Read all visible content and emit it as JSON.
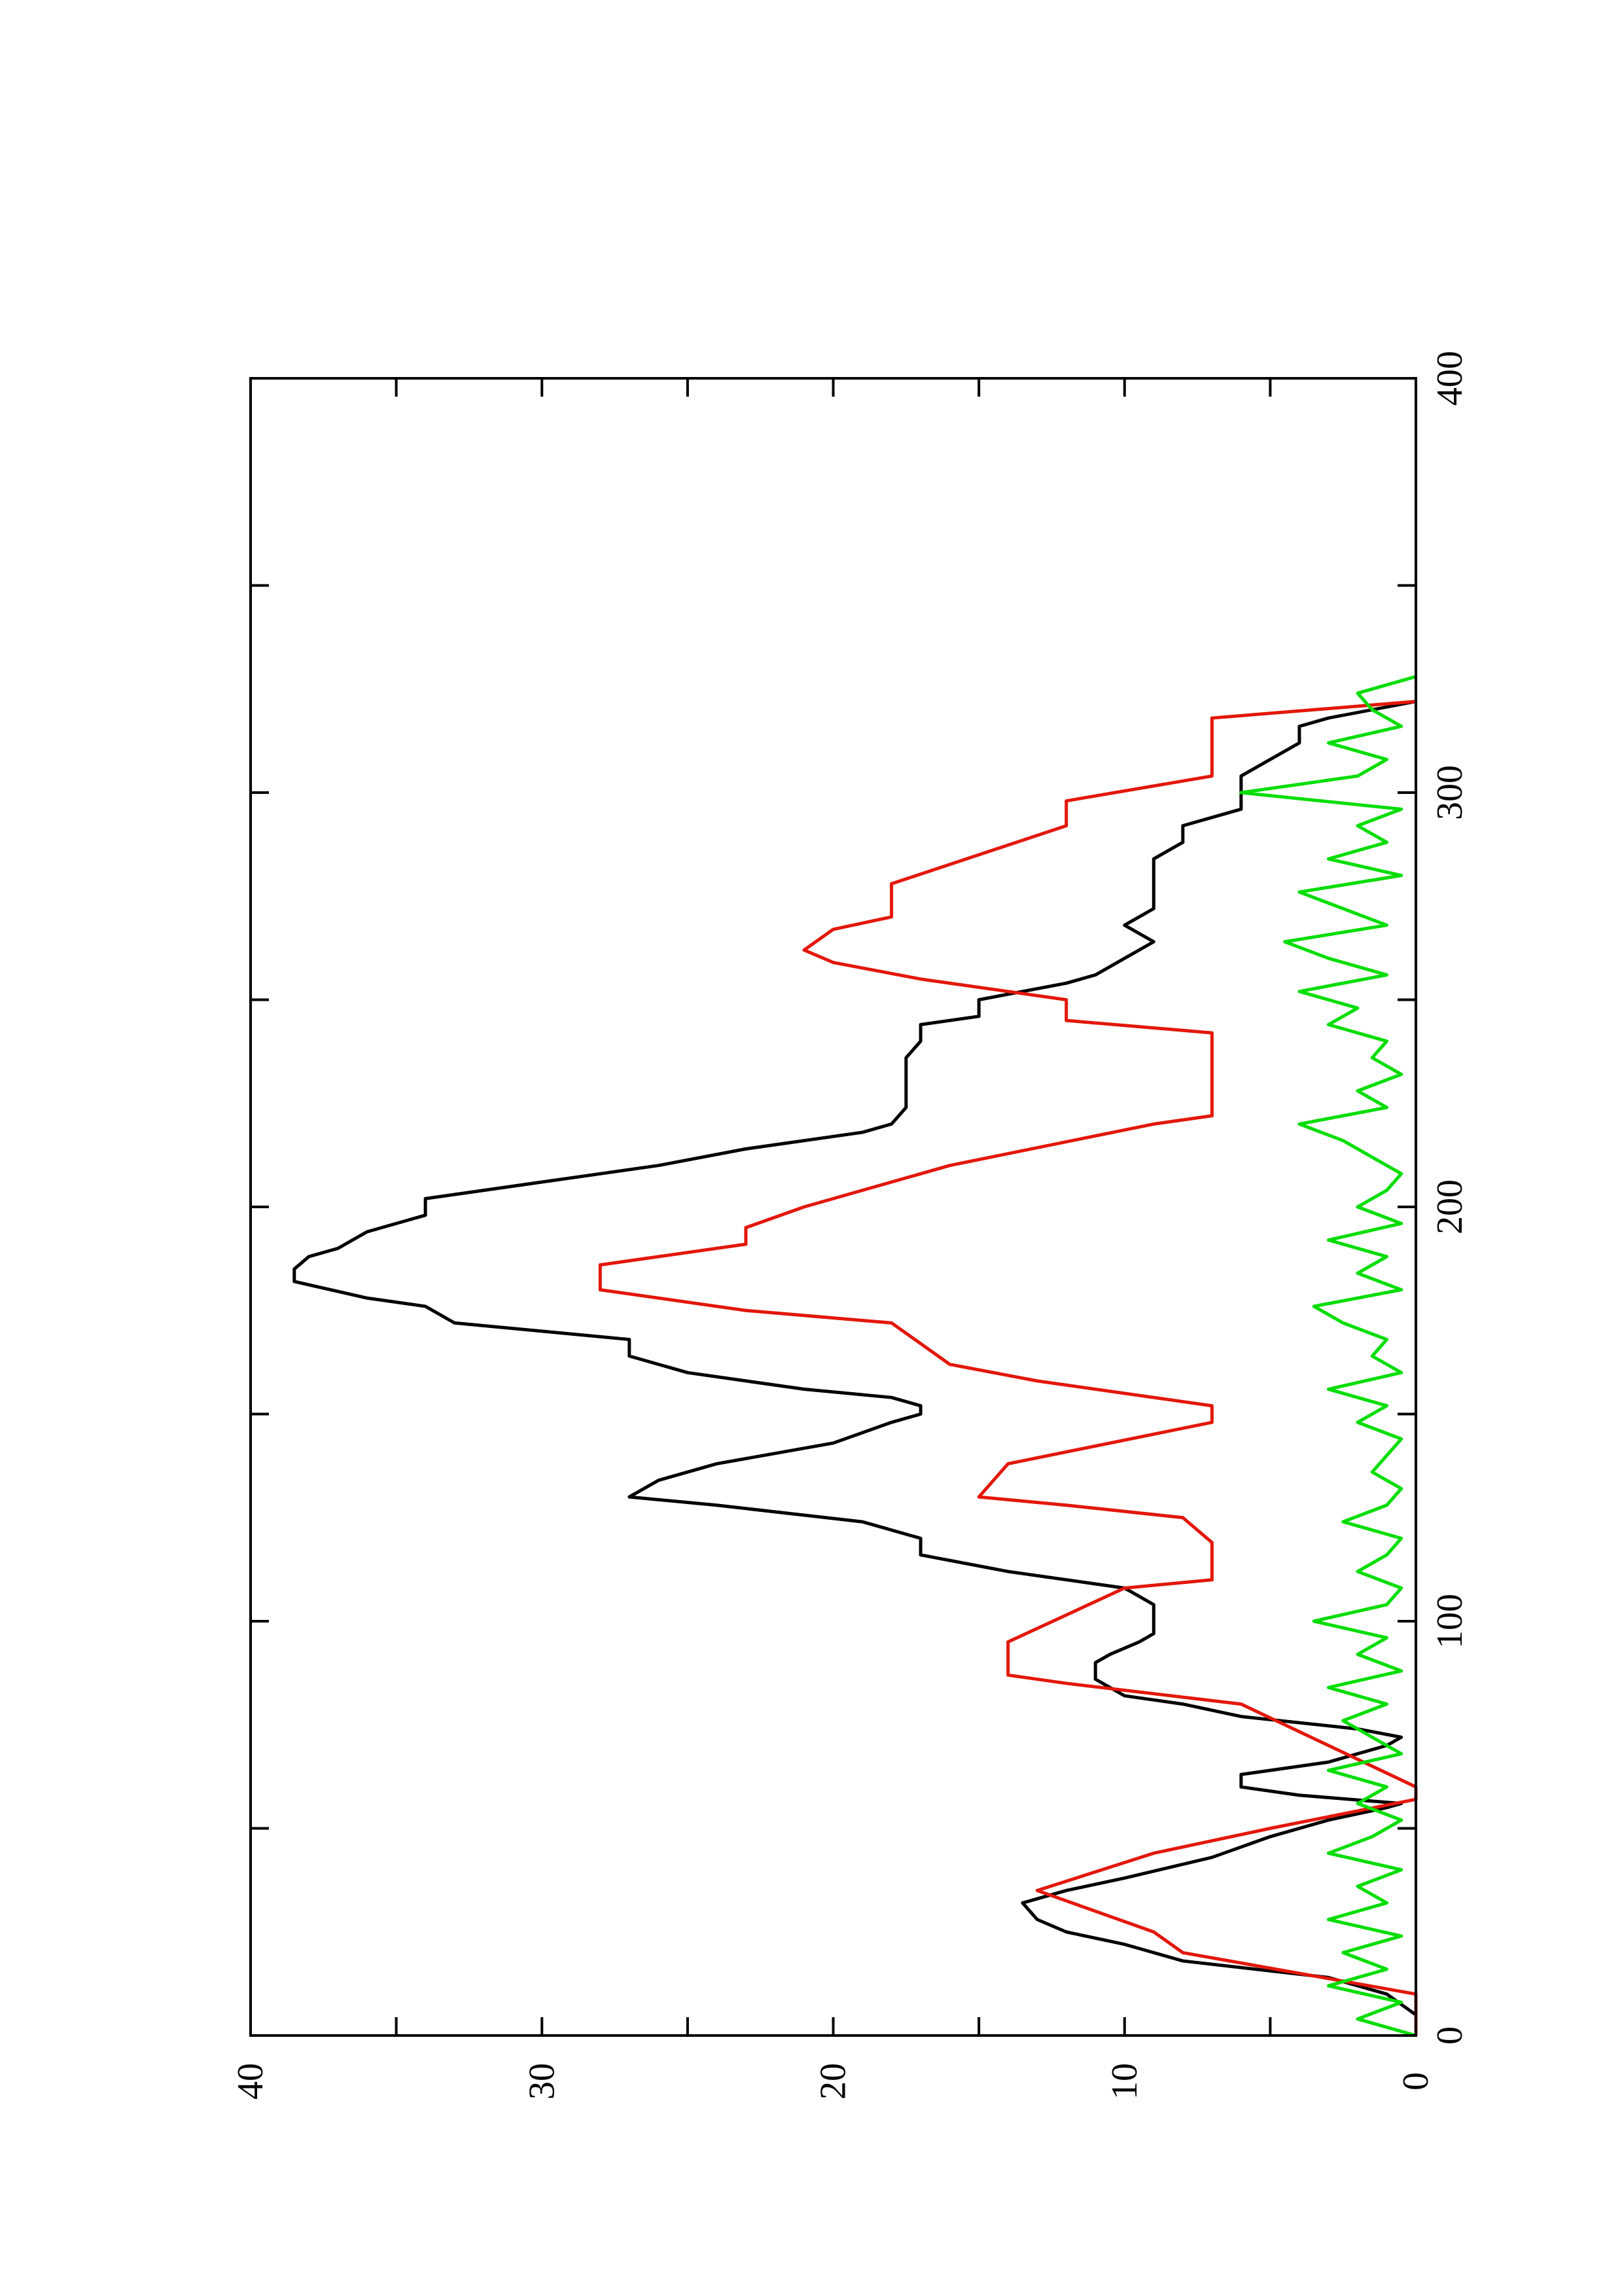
{
  "chart_data": {
    "type": "line",
    "title": "",
    "xlabel": "",
    "ylabel": "",
    "orientation": "rotated-90-ccw",
    "xlim": [
      0,
      400
    ],
    "ylim": [
      0,
      40
    ],
    "x_ticks": [
      0,
      100,
      200,
      300,
      400
    ],
    "y_ticks": [
      0,
      10,
      20,
      30,
      40
    ],
    "grid": false,
    "legend": "none",
    "series": [
      {
        "color": "#000000",
        "x": [
          0,
          5,
          10,
          14,
          18,
          20,
          22,
          25,
          28,
          32,
          35,
          38,
          43,
          48,
          52,
          55,
          56,
          58,
          60,
          63,
          66,
          70,
          72,
          74,
          77,
          80,
          82,
          86,
          90,
          92,
          95,
          97,
          99,
          104,
          108,
          110,
          112,
          116,
          120,
          124,
          128,
          130,
          134,
          138,
          143,
          148,
          150,
          152,
          154,
          156,
          160,
          164,
          168,
          172,
          176,
          178,
          182,
          185,
          188,
          190,
          194,
          198,
          202,
          206,
          210,
          214,
          218,
          220,
          224,
          230,
          236,
          240,
          242,
          244,
          246,
          250,
          254,
          256,
          260,
          264,
          268,
          272,
          276,
          280,
          284,
          288,
          292,
          296,
          300,
          304,
          308,
          312,
          316,
          318,
          322
        ],
        "y": [
          0,
          0,
          1,
          3,
          8,
          9,
          10,
          12,
          13,
          13.5,
          12,
          10,
          7,
          5,
          3,
          1,
          0.5,
          4,
          6,
          6,
          3,
          1,
          0.5,
          2,
          6,
          8,
          10,
          11,
          11,
          10.5,
          9.5,
          9,
          9,
          9,
          10,
          12,
          14,
          17,
          17,
          19,
          24,
          27,
          26,
          24,
          20,
          18,
          17,
          17,
          18,
          21,
          25,
          27,
          27,
          33,
          34,
          36,
          38.5,
          38.5,
          38,
          37,
          36,
          34,
          34,
          30,
          26,
          23,
          19,
          18,
          17.5,
          17.5,
          17.5,
          17,
          17,
          17,
          15,
          15,
          12,
          11,
          10,
          9,
          10,
          9,
          9,
          9,
          9,
          8,
          8,
          6,
          6,
          6,
          5,
          4,
          4,
          3,
          0
        ]
      },
      {
        "color": "#e3170a",
        "x": [
          0,
          10,
          20,
          25,
          35,
          44,
          50,
          57,
          60,
          70,
          80,
          85,
          87,
          95,
          108,
          110,
          119,
          125,
          128,
          130,
          138,
          148,
          152,
          158,
          162,
          172,
          175,
          180,
          186,
          191,
          195,
          200,
          206,
          210,
          220,
          222,
          240,
          242,
          245,
          250,
          255,
          259,
          262,
          267,
          270,
          278,
          292,
          298,
          304,
          318,
          322
        ],
        "y": [
          0,
          0,
          8,
          9,
          13,
          9,
          5,
          0,
          0,
          3,
          6,
          12,
          14,
          14,
          10,
          7,
          7,
          8,
          12,
          15,
          14,
          7,
          7,
          13,
          16,
          18,
          23,
          28,
          28,
          23,
          23,
          21,
          18,
          16,
          9,
          7,
          7,
          7,
          12,
          12,
          17,
          20,
          21,
          20,
          18,
          18,
          12,
          12,
          7,
          7,
          0
        ]
      },
      {
        "color": "#00dd00",
        "x": [
          0,
          4,
          8,
          12,
          16,
          20,
          24,
          28,
          32,
          36,
          40,
          44,
          48,
          52,
          56,
          60,
          64,
          68,
          72,
          76,
          80,
          84,
          88,
          92,
          96,
          100,
          104,
          108,
          112,
          116,
          120,
          124,
          128,
          132,
          136,
          140,
          144,
          148,
          152,
          156,
          160,
          164,
          168,
          172,
          176,
          180,
          184,
          188,
          192,
          196,
          200,
          204,
          208,
          212,
          216,
          220,
          224,
          228,
          232,
          236,
          240,
          244,
          248,
          252,
          256,
          260,
          264,
          268,
          272,
          276,
          280,
          284,
          288,
          292,
          296,
          300,
          304,
          308,
          312,
          316,
          320,
          324,
          328
        ],
        "y": [
          0,
          2,
          0.5,
          3,
          1,
          2.5,
          0.5,
          3,
          1,
          2,
          0.5,
          3,
          1.5,
          0.5,
          2,
          1,
          3,
          0.5,
          1.5,
          2.5,
          1,
          3,
          0.5,
          2,
          1,
          3.5,
          1,
          0.5,
          2,
          1,
          0.5,
          2.5,
          1,
          0.5,
          1.5,
          1,
          0.5,
          2,
          1,
          3,
          0.5,
          1.5,
          1,
          2.5,
          3.5,
          0.5,
          2,
          1,
          3,
          0.5,
          2,
          1,
          0.5,
          1.5,
          2.5,
          4,
          1,
          2,
          0.5,
          1.5,
          1,
          3,
          2,
          4,
          1,
          3,
          4.5,
          1,
          2.5,
          4,
          0.5,
          3,
          1,
          2,
          0.5,
          6,
          2,
          1,
          3,
          0.5,
          1.5,
          2,
          0
        ]
      }
    ]
  }
}
